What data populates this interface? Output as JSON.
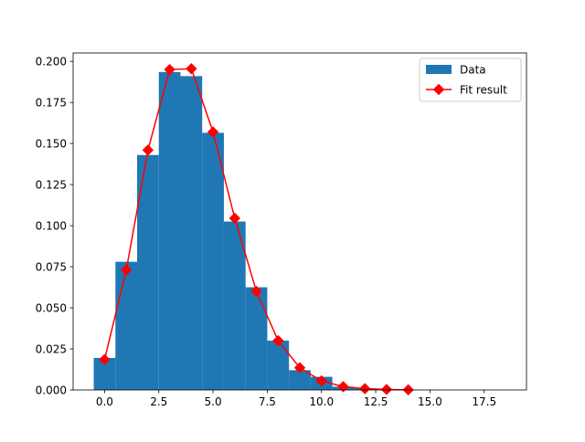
{
  "chart_data": {
    "type": "bar",
    "title": "",
    "xlabel": "",
    "ylabel": "",
    "xlim": [
      -1.45,
      19.45
    ],
    "ylim": [
      0,
      0.2051
    ],
    "grid": false,
    "legend_placement": "top-right",
    "x_ticks": [
      0.0,
      2.5,
      5.0,
      7.5,
      10.0,
      12.5,
      15.0,
      17.5
    ],
    "x_tick_labels": [
      "0.0",
      "2.5",
      "5.0",
      "7.5",
      "10.0",
      "12.5",
      "15.0",
      "17.5"
    ],
    "y_ticks": [
      0.0,
      0.025,
      0.05,
      0.075,
      0.1,
      0.125,
      0.15,
      0.175,
      0.2
    ],
    "y_tick_labels": [
      "0.000",
      "0.025",
      "0.050",
      "0.075",
      "0.100",
      "0.125",
      "0.150",
      "0.175",
      "0.200"
    ],
    "series": [
      {
        "name": "Data",
        "type": "bar",
        "color": "#1f77b4",
        "bar_width": 1,
        "x": [
          0,
          1,
          2,
          3,
          4,
          5,
          6,
          7,
          8,
          9,
          10,
          11,
          12,
          13,
          14,
          15,
          16,
          17,
          18
        ],
        "values": [
          0.0195,
          0.078,
          0.143,
          0.1935,
          0.191,
          0.1565,
          0.1025,
          0.0625,
          0.03,
          0.012,
          0.008,
          0.002,
          0.001,
          0.0005,
          0.0002,
          0.0001,
          0.0,
          0.0,
          0.0
        ]
      },
      {
        "name": "Fit result",
        "type": "line",
        "color": "#ff0000",
        "marker": "diamond",
        "x": [
          0,
          1,
          2,
          3,
          4,
          5,
          6,
          7,
          8,
          9,
          10,
          11,
          12,
          13,
          14
        ],
        "values": [
          0.0185,
          0.073,
          0.146,
          0.195,
          0.1955,
          0.157,
          0.1045,
          0.06,
          0.03,
          0.0135,
          0.0055,
          0.002,
          0.0008,
          0.0003,
          0.0001
        ]
      }
    ]
  }
}
